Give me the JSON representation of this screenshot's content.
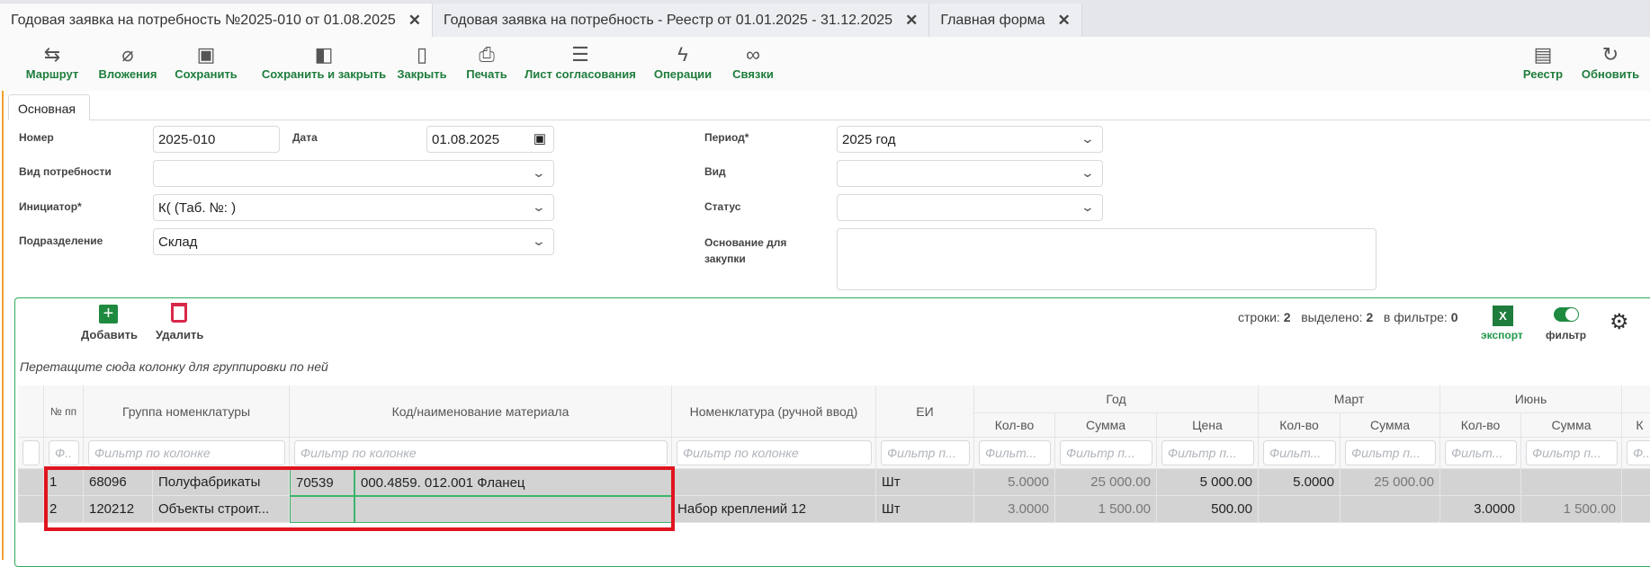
{
  "tabs": [
    {
      "label": "Годовая заявка на потребность №2025-010 от 01.08.2025",
      "active": true
    },
    {
      "label": "Годовая заявка на потребность - Реестр от 01.01.2025 - 31.12.2025"
    },
    {
      "label": "Главная форма"
    }
  ],
  "toolbar": {
    "left": [
      {
        "label": "Маршрут",
        "icon": "route-icon"
      },
      {
        "label": "Вложения",
        "icon": "paperclip-icon"
      },
      {
        "label": "Сохранить",
        "icon": "save-icon"
      },
      {
        "label": "Сохранить и закрыть",
        "icon": "save-close-icon"
      },
      {
        "label": "Закрыть",
        "icon": "door-icon"
      },
      {
        "label": "Печать",
        "icon": "print-icon"
      },
      {
        "label": "Лист согласования",
        "icon": "checklist-icon"
      },
      {
        "label": "Операции",
        "icon": "lightning-icon"
      },
      {
        "label": "Связки",
        "icon": "link-icon"
      }
    ],
    "right": [
      {
        "label": "Реестр",
        "icon": "registry-icon"
      },
      {
        "label": "Обновить",
        "icon": "refresh-icon"
      }
    ]
  },
  "form": {
    "tab": "Основная",
    "number": {
      "label": "Номер",
      "value": "2025-010"
    },
    "date": {
      "label": "Дата",
      "value": "01.08.2025"
    },
    "need_type": {
      "label": "Вид потребности",
      "value": ""
    },
    "initiator": {
      "label": "Инициатор*",
      "value": "К(           (Таб. №:      )"
    },
    "department": {
      "label": "Подразделение",
      "value": "Склад"
    },
    "period": {
      "label": "Период*",
      "value": "2025 год"
    },
    "kind": {
      "label": "Вид",
      "value": ""
    },
    "status": {
      "label": "Статус",
      "value": ""
    },
    "basis": {
      "label": "Основание для закупки",
      "value": ""
    }
  },
  "grid": {
    "add": "Добавить",
    "delete": "Удалить",
    "stats": {
      "rows_label": "строки:",
      "rows": "2",
      "selected_label": "выделено:",
      "selected": "2",
      "filtered_label": "в фильтре:",
      "filtered": "0"
    },
    "export": "экспорт",
    "filter": "фильтр",
    "filter_on": true,
    "group_hint": "Перетащите сюда колонку для группировки по ней",
    "groups": {
      "year": "Год",
      "march": "Март",
      "june": "Июнь"
    },
    "columns": {
      "num": "№ пп",
      "group": "Группа номенклатуры",
      "material": "Код/наименование материала",
      "manual": "Номенклатура (ручной ввод)",
      "unit": "ЕИ",
      "qty": "Кол-во",
      "sum": "Сумма",
      "price": "Цена",
      "next": "К"
    },
    "filter_placeholder": "Фильтр по колонке",
    "filter_short": "Фильтр п...",
    "filter_shorter": "Фильт...",
    "filter_tiny": "Ф..",
    "rows": [
      {
        "n": "1",
        "gcode": "68096",
        "gname": "Полуфабрикаты",
        "mcode": "70539",
        "mname": "000.4859. 012.001 Фланец",
        "manual": "",
        "unit": "Шт",
        "y_qty": "5.0000",
        "y_sum": "25 000.00",
        "y_price": "5 000.00",
        "m_qty": "5.0000",
        "m_sum": "25 000.00",
        "j_qty": "",
        "j_sum": ""
      },
      {
        "n": "2",
        "gcode": "120212",
        "gname": "Объекты строит...",
        "mcode": "",
        "mname": "",
        "manual": "Набор креплений 12",
        "unit": "Шт",
        "y_qty": "3.0000",
        "y_sum": "1 500.00",
        "y_price": "500.00",
        "m_qty": "",
        "m_sum": "",
        "j_qty": "3.0000",
        "j_sum": "1 500.00"
      }
    ]
  },
  "colors": {
    "accent": "#1e7d3c",
    "border": "#2eaa5a",
    "highlight": "#e0141e",
    "row": "#d3d3d3"
  }
}
